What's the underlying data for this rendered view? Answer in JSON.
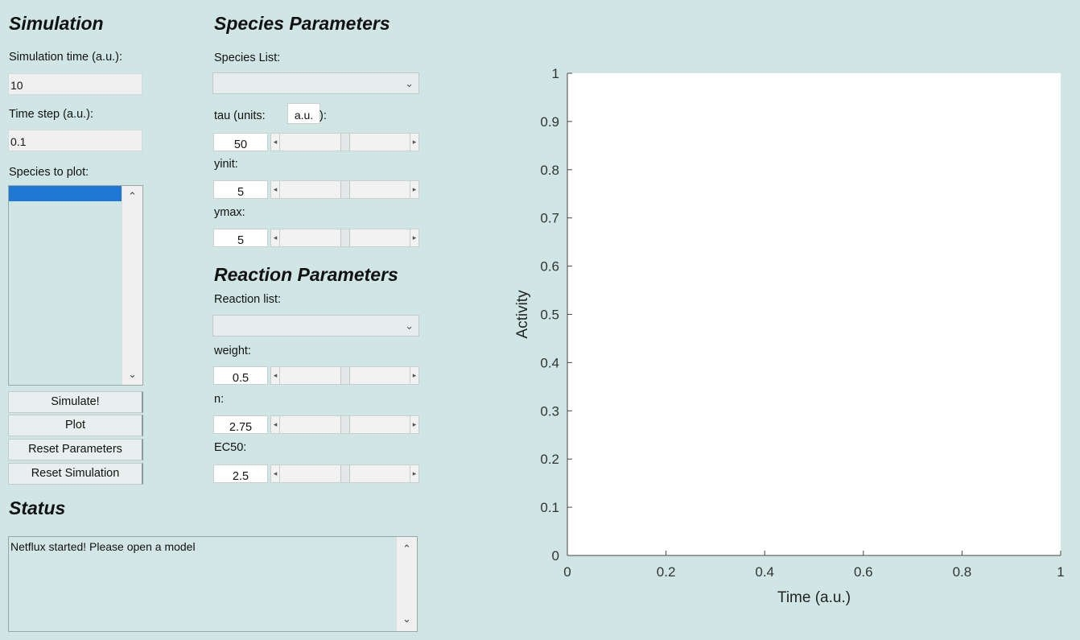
{
  "simulation": {
    "heading": "Simulation",
    "time_label": "Simulation time (a.u.):",
    "time_value": "10",
    "step_label": "Time step (a.u.):",
    "step_value": "0.1",
    "plot_label": "Species to plot:",
    "buttons": {
      "simulate": "Simulate!",
      "plot": "Plot",
      "reset_params": "Reset Parameters",
      "reset_sim": "Reset Simulation"
    }
  },
  "status": {
    "heading": "Status",
    "text": "Netflux started! Please open a model"
  },
  "species": {
    "heading": "Species Parameters",
    "list_label": "Species List:",
    "tau_label": "tau (units:",
    "tau_units": "a.u.",
    "tau_close": "):",
    "tau_value": "50",
    "yinit_label": "yinit:",
    "yinit_value": "5",
    "ymax_label": "ymax:",
    "ymax_value": "5"
  },
  "reaction": {
    "heading": "Reaction Parameters",
    "list_label": "Reaction list:",
    "weight_label": "weight:",
    "weight_value": "0.5",
    "n_label": "n:",
    "n_value": "2.75",
    "ec50_label": "EC50:",
    "ec50_value": "2.5"
  },
  "chart_data": {
    "type": "line",
    "title": "",
    "xlabel": "Time (a.u.)",
    "ylabel": "Activity",
    "xlim": [
      0,
      1
    ],
    "ylim": [
      0,
      1
    ],
    "x_ticks": [
      "0",
      "0.2",
      "0.4",
      "0.6",
      "0.8",
      "1"
    ],
    "y_ticks": [
      "0",
      "0.1",
      "0.2",
      "0.3",
      "0.4",
      "0.5",
      "0.6",
      "0.7",
      "0.8",
      "0.9",
      "1"
    ],
    "series": []
  }
}
